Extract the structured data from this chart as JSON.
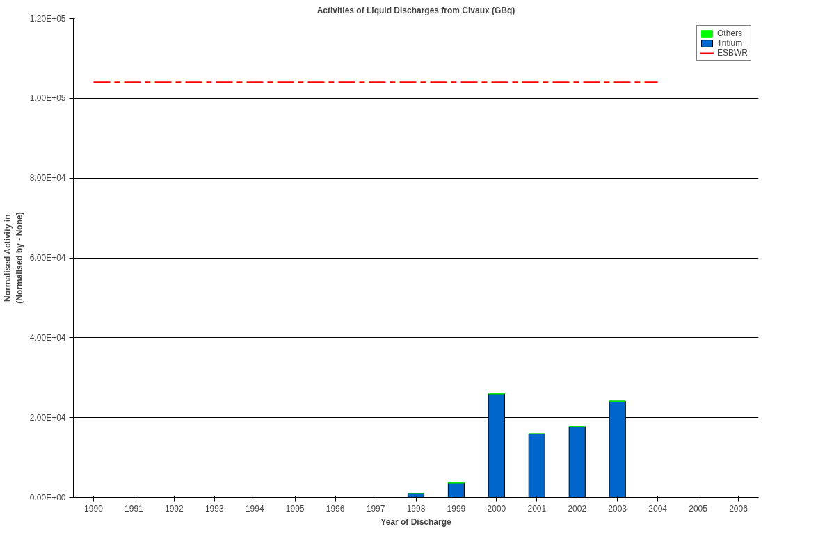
{
  "chart_data": {
    "type": "bar",
    "title": "Activities of Liquid Discharges from Civaux (GBq)",
    "xlabel": "Year of Discharge",
    "ylabel": "Normalised Activity in\n(Normalised by - None)",
    "categories": [
      "1990",
      "1991",
      "1992",
      "1993",
      "1994",
      "1995",
      "1996",
      "1997",
      "1998",
      "1999",
      "2000",
      "2001",
      "2002",
      "2003",
      "2004",
      "2005",
      "2006"
    ],
    "stacked": true,
    "series": [
      {
        "name": "Tritium",
        "color": "#0066cc",
        "values": [
          null,
          null,
          null,
          null,
          null,
          null,
          null,
          null,
          1000,
          3600,
          25900,
          15900,
          17700,
          24100,
          null,
          null,
          null
        ]
      },
      {
        "name": "Others",
        "color": "#00ff00",
        "values": [
          0,
          0,
          0,
          0,
          0,
          0,
          0,
          0,
          0,
          0,
          0,
          0,
          0,
          0,
          0,
          0,
          0
        ]
      },
      {
        "name": "ESBWR",
        "type": "line",
        "color": "#ff0000",
        "line_style": "dashed",
        "values": [
          104000,
          104000,
          104000,
          104000,
          104000,
          104000,
          104000,
          104000,
          104000,
          104000,
          104000,
          104000,
          104000,
          104000,
          104000,
          null,
          null
        ]
      }
    ],
    "ylim": [
      0,
      120000
    ],
    "yticks": [
      {
        "value": 0,
        "label": "0.00E+00"
      },
      {
        "value": 20000,
        "label": "2.00E+04"
      },
      {
        "value": 40000,
        "label": "4.00E+04"
      },
      {
        "value": 60000,
        "label": "6.00E+04"
      },
      {
        "value": 80000,
        "label": "8.00E+04"
      },
      {
        "value": 100000,
        "label": "1.00E+05"
      },
      {
        "value": 120000,
        "label": "1.20E+05"
      }
    ],
    "grid": "y",
    "legend": "top right"
  }
}
